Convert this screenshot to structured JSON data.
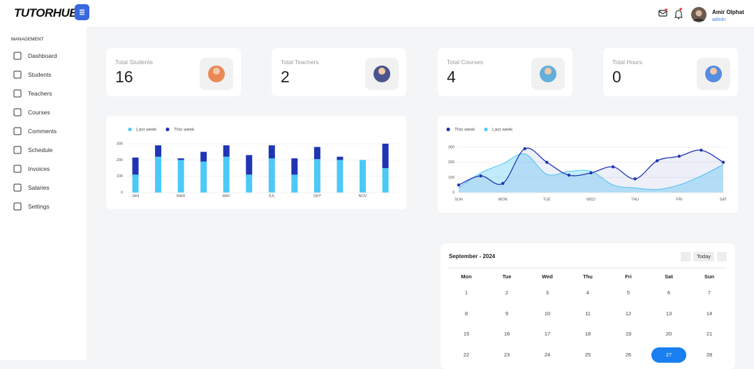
{
  "header": {
    "logo": "TUTORHUB",
    "user_name": "Amir Olphat",
    "user_role": "admin"
  },
  "sidebar": {
    "section": "MANAGEMENT",
    "items": [
      "Dashboard",
      "Students",
      "Teachers",
      "Courses",
      "Comments",
      "Schedule",
      "Invoices",
      "Salaries",
      "Settings"
    ]
  },
  "stats": [
    {
      "label": "Total Students",
      "value": 16
    },
    {
      "label": "Total Teachers",
      "value": 2
    },
    {
      "label": "Total Courses",
      "value": 4
    },
    {
      "label": "Total Hours",
      "value": 0
    }
  ],
  "chart_data": [
    {
      "type": "bar",
      "stacked": true,
      "grid": true,
      "categories": [
        "JAN",
        null,
        "MAR",
        null,
        "MAY",
        null,
        "JUL",
        null,
        "SEP",
        null,
        "NOV",
        null
      ],
      "series": [
        {
          "name": "Last week",
          "color": "#4cc9f7",
          "values": [
            110,
            220,
            200,
            190,
            220,
            110,
            210,
            110,
            205,
            200,
            200,
            150
          ]
        },
        {
          "name": "This week",
          "color": "#1f35b3",
          "values": [
            105,
            70,
            10,
            60,
            70,
            120,
            80,
            100,
            75,
            20,
            0,
            150
          ]
        }
      ],
      "ylim": [
        0,
        300
      ],
      "yticks": [
        0,
        100,
        200,
        300
      ]
    },
    {
      "type": "line",
      "grid": true,
      "categories": [
        "SUN",
        null,
        "MON",
        null,
        "TUE",
        null,
        "WED",
        null,
        "THU",
        null,
        "FRI",
        null,
        "SAT"
      ],
      "series": [
        {
          "name": "This week",
          "color": "#1f35b3",
          "values": [
            50,
            110,
            60,
            290,
            200,
            115,
            130,
            170,
            90,
            210,
            240,
            280,
            200
          ]
        },
        {
          "name": "Last week",
          "color": "#4cc9f7",
          "fill": true,
          "values": [
            30,
            130,
            190,
            255,
            120,
            140,
            140,
            50,
            30,
            20,
            50,
            110,
            185
          ]
        }
      ],
      "ylim": [
        0,
        300
      ],
      "yticks": [
        0,
        100,
        200,
        300
      ]
    }
  ],
  "calendar": {
    "title": "September - 2024",
    "today": "Today",
    "weekdays": [
      "Mon",
      "Tue",
      "Wed",
      "Thu",
      "Fri",
      "Sat",
      "Sun"
    ],
    "weeks": [
      [
        1,
        2,
        3,
        4,
        5,
        6,
        7
      ],
      [
        8,
        9,
        10,
        11,
        12,
        13,
        14
      ],
      [
        15,
        16,
        17,
        18,
        19,
        20,
        21
      ],
      [
        22,
        23,
        24,
        25,
        26,
        27,
        28
      ]
    ],
    "selected": 27
  }
}
